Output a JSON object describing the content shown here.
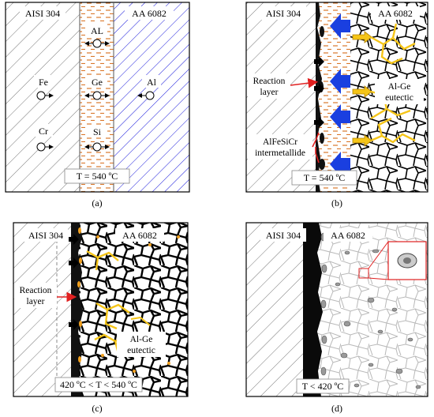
{
  "panels": {
    "a": {
      "caption": "(a)",
      "left_label": "AISI 304",
      "right_label": "AA 6082",
      "interlayer_elements": [
        "AL",
        "Ge",
        "Si"
      ],
      "steel_elements": [
        "Fe",
        "Cr"
      ],
      "al_elements": [
        "Al"
      ],
      "temperature": "T = 540 ºC"
    },
    "b": {
      "caption": "(b)",
      "left_label": "AISI 304",
      "right_label": "AA 6082",
      "reaction_layer": "Reaction layer",
      "eutectic": "Al-Ge eutectic",
      "intermetallide": "AlFeSiCr intermetallide",
      "temperature": "T = 540 ºC"
    },
    "c": {
      "caption": "(c)",
      "left_label": "AISI 304",
      "right_label": "AA 6082",
      "reaction_layer": "Reaction layer",
      "eutectic": "Al-Ge eutectic",
      "temperature": "420 ºC < T < 540 ºC"
    },
    "d": {
      "caption": "(d)",
      "left_label": "AISI 304",
      "right_label": "AA 6082",
      "temperature": "T < 420 ºC"
    }
  },
  "colors": {
    "hatch": "#555555",
    "al_hatch": "#1a1adb",
    "dash": "#d9772b",
    "blue_arrow": "#1a3fe0",
    "yellow": "#f5c518",
    "orange": "#f0a020",
    "red": "#e02020"
  }
}
